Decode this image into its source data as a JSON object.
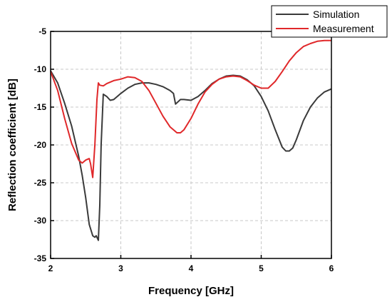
{
  "chart_data": {
    "type": "line",
    "xlabel": "Frequency [GHz]",
    "ylabel": "Reflection coefficient [dB]",
    "xlim": [
      2,
      6
    ],
    "ylim": [
      -35,
      -5
    ],
    "xticks": [
      2,
      3,
      4,
      5,
      6
    ],
    "yticks": [
      -35,
      -30,
      -25,
      -20,
      -15,
      -10,
      -5
    ],
    "grid": "dashed, both axes",
    "legend_position": "top-right",
    "series": [
      {
        "name": "Simulation",
        "color": "#3a3a3a",
        "x": [
          2.0,
          2.1,
          2.2,
          2.3,
          2.4,
          2.45,
          2.5,
          2.55,
          2.6,
          2.63,
          2.65,
          2.68,
          2.7,
          2.72,
          2.75,
          2.8,
          2.85,
          2.9,
          3.0,
          3.1,
          3.2,
          3.3,
          3.4,
          3.5,
          3.6,
          3.7,
          3.75,
          3.78,
          3.85,
          3.9,
          4.0,
          4.1,
          4.2,
          4.3,
          4.4,
          4.5,
          4.6,
          4.7,
          4.8,
          4.9,
          5.0,
          5.1,
          5.2,
          5.3,
          5.35,
          5.4,
          5.45,
          5.5,
          5.6,
          5.7,
          5.8,
          5.9,
          6.0
        ],
        "y": [
          -10.2,
          -11.8,
          -14.5,
          -17.5,
          -21.5,
          -24.0,
          -27.0,
          -30.5,
          -32.0,
          -32.2,
          -32.0,
          -32.6,
          -28.0,
          -20.0,
          -13.3,
          -13.6,
          -14.1,
          -14.0,
          -13.2,
          -12.5,
          -12.0,
          -11.8,
          -11.8,
          -12.0,
          -12.3,
          -12.8,
          -13.2,
          -14.6,
          -14.0,
          -14.0,
          -14.1,
          -13.6,
          -12.8,
          -11.9,
          -11.3,
          -10.9,
          -10.8,
          -10.9,
          -11.4,
          -12.2,
          -13.6,
          -15.5,
          -18.0,
          -20.3,
          -20.8,
          -20.8,
          -20.4,
          -19.3,
          -16.8,
          -15.0,
          -13.8,
          -13.0,
          -12.6
        ]
      },
      {
        "name": "Measurement",
        "color": "#e0282a",
        "x": [
          2.0,
          2.1,
          2.2,
          2.3,
          2.4,
          2.45,
          2.5,
          2.55,
          2.57,
          2.6,
          2.63,
          2.66,
          2.68,
          2.7,
          2.75,
          2.8,
          2.9,
          3.0,
          3.1,
          3.2,
          3.3,
          3.4,
          3.5,
          3.6,
          3.7,
          3.8,
          3.85,
          3.9,
          4.0,
          4.1,
          4.2,
          4.3,
          4.4,
          4.5,
          4.6,
          4.7,
          4.8,
          4.9,
          5.0,
          5.1,
          5.2,
          5.3,
          5.4,
          5.5,
          5.6,
          5.7,
          5.8,
          5.9,
          6.0
        ],
        "y": [
          -10.3,
          -12.8,
          -16.5,
          -19.8,
          -22.0,
          -22.4,
          -22.0,
          -21.8,
          -22.5,
          -24.3,
          -20.0,
          -14.0,
          -11.8,
          -12.1,
          -12.2,
          -11.9,
          -11.5,
          -11.3,
          -11.0,
          -11.1,
          -11.6,
          -12.8,
          -14.5,
          -16.2,
          -17.6,
          -18.4,
          -18.4,
          -18.0,
          -16.5,
          -14.6,
          -13.0,
          -12.0,
          -11.3,
          -11.0,
          -10.9,
          -11.0,
          -11.5,
          -12.1,
          -12.5,
          -12.5,
          -11.6,
          -10.3,
          -8.9,
          -7.8,
          -7.0,
          -6.6,
          -6.3,
          -6.2,
          -6.2
        ]
      }
    ]
  }
}
